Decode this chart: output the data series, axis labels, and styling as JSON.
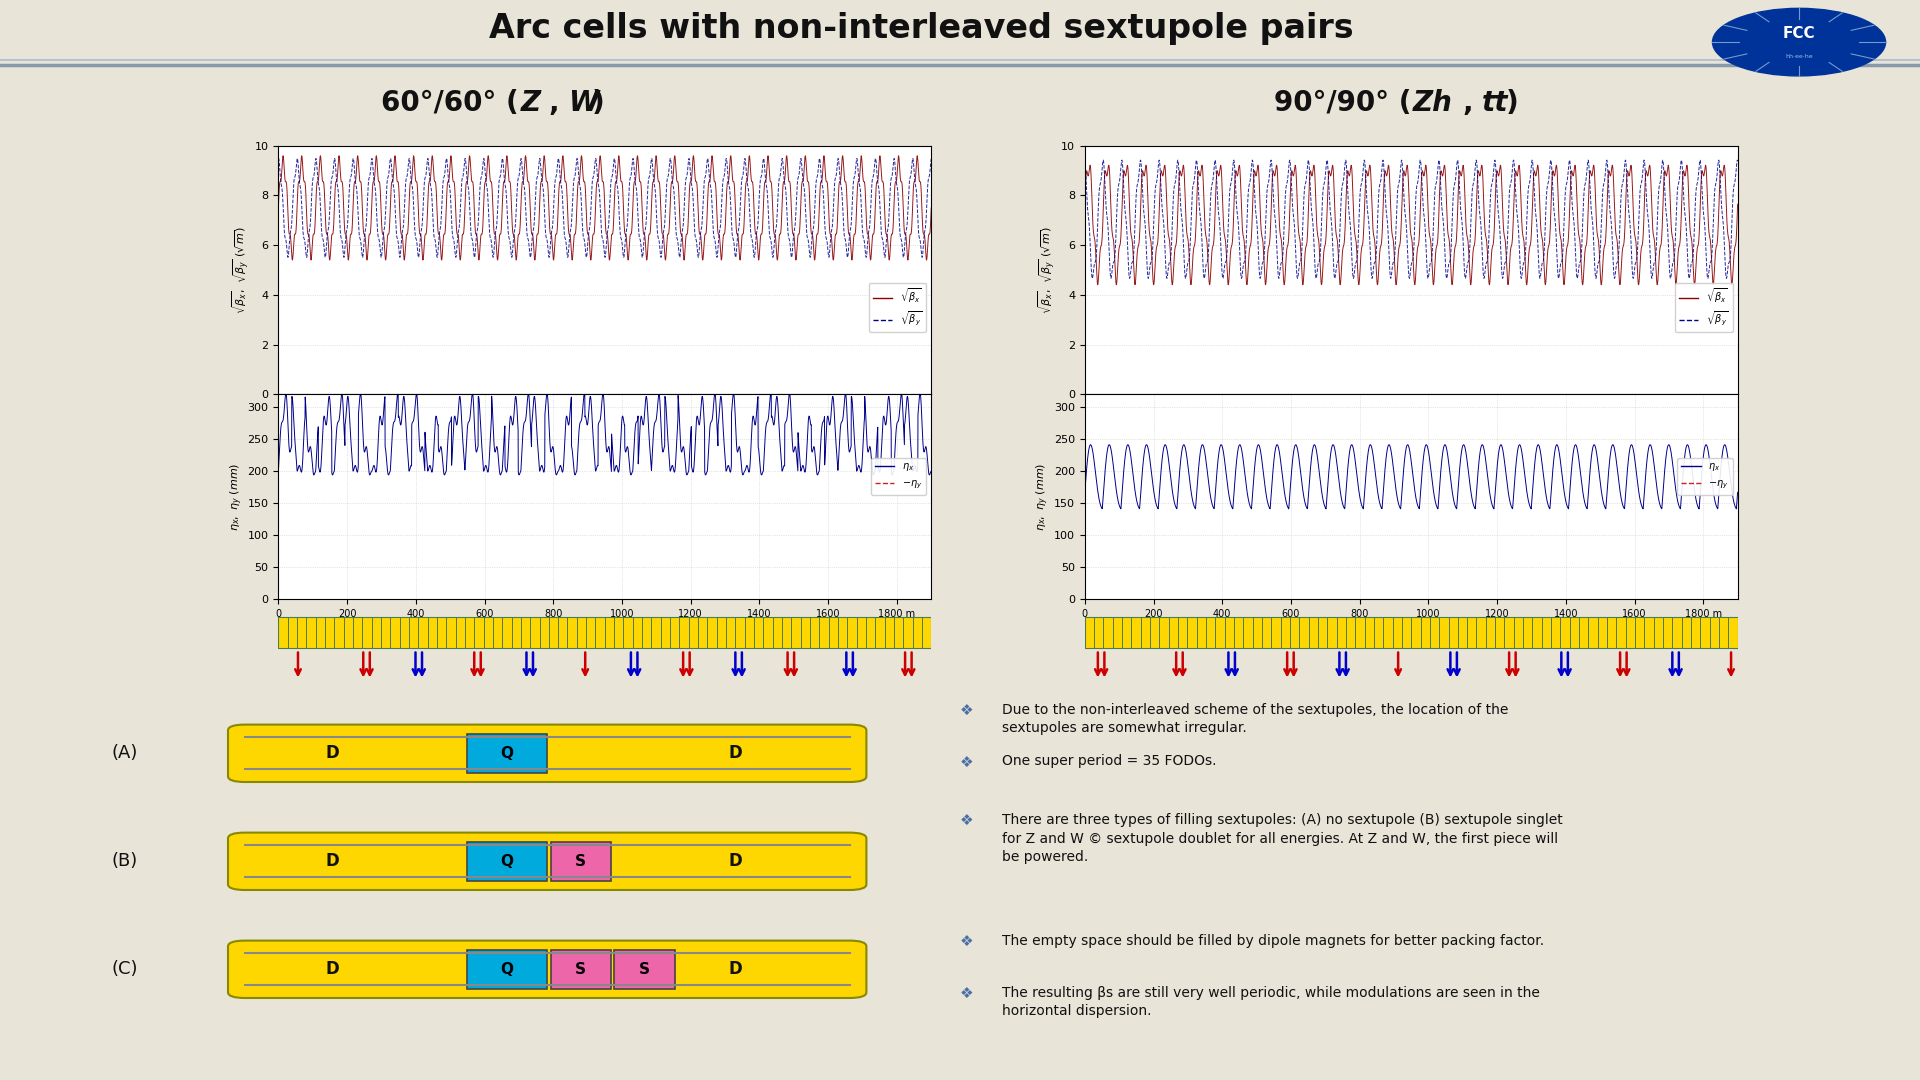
{
  "title": "Arc cells with non-interleaved sextupole pairs",
  "bg_color": "#e8e4d8",
  "plot_bg": "#ffffff",
  "color_bx": "#8b0000",
  "color_by": "#00008b",
  "color_ex": "#00008b",
  "color_ey": "#cc2222",
  "dipole_color": "#ffd700",
  "dipole_border": "#4a7c4e",
  "quad_color": "#00aadd",
  "sext_color": "#ee66aa",
  "arrow_red": "#cc0000",
  "arrow_blue": "#0000cc",
  "bullet_sym": "❖",
  "bullet_color": "#4a6fa5",
  "text_bullets": [
    "Due to the non-interleaved scheme of the sextupoles, the location of the sextupoles are somewhat irregular.",
    "One super period = 35 FODOs.",
    "There are three types of filling sextupoles: (A) no sextupole (B) sextupole singlet for Z and W © sextupole doublet for all energies. At Z and W, the first piece will be powered.",
    "The empty space should be filled by dipole magnets for better packing factor.",
    "The resulting βs are still very well periodic, while modulations are seen in the horizontal dispersion."
  ],
  "sep_line_color1": "#8899aa",
  "sep_line_color2": "#aabbcc",
  "fcc_circle_color": "#003399",
  "fcc_ring_color": "#ccddff"
}
